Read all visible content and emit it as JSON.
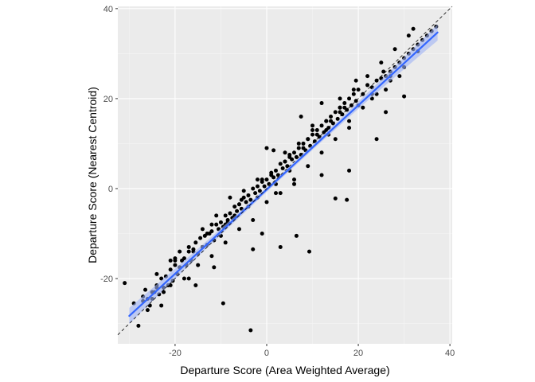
{
  "chart_data": {
    "type": "scatter",
    "title": "",
    "xlabel": "Departure Score (Area Weighted Average)",
    "ylabel": "Departure Score (Nearest Centroid)",
    "xlim": [
      -32.5,
      40.5
    ],
    "ylim": [
      -34.5,
      40.5
    ],
    "x_ticks": [
      -20,
      0,
      20,
      40
    ],
    "y_ticks": [
      -20,
      0,
      20,
      40
    ],
    "x_tick_labels": [
      "-20",
      "0",
      "20",
      "40"
    ],
    "y_tick_labels": [
      "-20",
      "0",
      "20",
      "40"
    ],
    "grid": true,
    "legend": "none",
    "colors": {
      "panel": "#ebebeb",
      "grid_major": "#ffffff",
      "grid_minor": "#f5f5f5",
      "points": "#000000",
      "fit_line": "#3366ff",
      "fit_band": "#9fb3f5",
      "reference_line": "#000000"
    },
    "reference_line": {
      "type": "identity",
      "slope": 1,
      "intercept": 0,
      "style": "dashed"
    },
    "fit_line": {
      "method": "linear",
      "x": [
        -30,
        37.3
      ],
      "y": [
        -28.3,
        34.7
      ]
    },
    "points": {
      "x": [
        -31,
        -29,
        -27,
        -26.5,
        -25.5,
        -25,
        -24.5,
        -24,
        -23.5,
        -23,
        -22.5,
        -22,
        -21.5,
        -21,
        -20.5,
        -20,
        -19.5,
        -19,
        -18.5,
        -18,
        -17.5,
        -17,
        -16.5,
        -16,
        -15.5,
        -15,
        -14.5,
        -14,
        -13.5,
        -13,
        -12.5,
        -12,
        -11.5,
        -11,
        -10.5,
        -10,
        -9.5,
        -9,
        -8.5,
        -8,
        -7.5,
        -7,
        -6.5,
        -6,
        -5.5,
        -5,
        -4.5,
        -4,
        -3.5,
        -3,
        -2.5,
        -2,
        -1.5,
        -1,
        -0.5,
        0,
        0.5,
        1,
        1.5,
        2,
        2.5,
        3,
        3.5,
        4,
        4.5,
        5,
        5.5,
        6,
        6.5,
        7,
        7.5,
        8,
        8.5,
        9,
        9.5,
        10,
        10.5,
        11,
        11.5,
        12,
        12.5,
        13,
        13.5,
        14,
        14.5,
        15,
        15.5,
        16,
        16.5,
        17,
        17.5,
        18,
        18.5,
        19,
        19.5,
        20,
        21,
        22,
        23,
        24,
        25,
        26,
        27,
        28,
        29,
        30,
        31,
        32,
        33,
        34,
        35,
        36,
        37,
        -26,
        -23,
        -20,
        -17,
        -14,
        -11,
        -8,
        -5,
        -2,
        1,
        4,
        7,
        10,
        13,
        16,
        19,
        22,
        25,
        28,
        31,
        -24,
        -21,
        -18,
        -15,
        -12,
        -9,
        -6,
        -3,
        0,
        3,
        6,
        9,
        12,
        15,
        18,
        21,
        24,
        27,
        30,
        -25,
        -16,
        -10,
        -4,
        -2,
        2,
        5,
        8,
        11,
        14,
        17,
        23,
        26,
        29,
        -19,
        -13,
        -7,
        -1,
        4,
        10,
        16,
        -9.5,
        -3.5,
        17.5,
        9.3,
        15,
        -20,
        -12,
        -6,
        -1,
        3,
        6.5,
        12,
        18,
        24,
        30,
        -28,
        -15.5,
        -11.5,
        -5.5,
        1.5,
        7.5,
        13.5,
        19.5,
        25.5,
        32,
        -22.5,
        -8.5,
        0,
        6,
        12,
        18,
        26,
        -3,
        -17,
        -26,
        -27,
        -24,
        -21,
        -19,
        -14,
        -9,
        -7,
        -2,
        2,
        5,
        9,
        13,
        16,
        20,
        23,
        27,
        33,
        36
      ],
      "y": [
        -21,
        -25.5,
        -24,
        -22.5,
        -26,
        -24.5,
        -23,
        -21.5,
        -23.5,
        -20,
        -22,
        -19.5,
        -21.5,
        -18,
        -20.5,
        -17,
        -19,
        -17.5,
        -16,
        -15.5,
        -17,
        -14,
        -16,
        -13.5,
        -12,
        -14.5,
        -11,
        -13,
        -10.5,
        -12.5,
        -10,
        -9.5,
        -11.5,
        -8,
        -9,
        -7.5,
        -8.5,
        -6,
        -7,
        -5.5,
        -6.5,
        -4,
        -5,
        -3.5,
        -4.5,
        -2,
        -3,
        -1.5,
        -2.5,
        0,
        -1,
        0.5,
        -0.5,
        1.5,
        0.5,
        2,
        1,
        3.5,
        2.5,
        4,
        3,
        5.5,
        4.5,
        6,
        5,
        7,
        6.5,
        8,
        7,
        9,
        7.5,
        10,
        8.5,
        11,
        9.5,
        12,
        10.5,
        13,
        11.5,
        14,
        12.5,
        15,
        13.5,
        16,
        14.5,
        17,
        15.5,
        18,
        16.5,
        19,
        17.5,
        20,
        18.5,
        21,
        19.5,
        22,
        21,
        23,
        22.5,
        24,
        24.5,
        25,
        26,
        27,
        28,
        29,
        30,
        31,
        32,
        33,
        34,
        35,
        36,
        -27,
        -26,
        -16,
        -13,
        -9,
        -6,
        -2,
        -0.5,
        2,
        3,
        6,
        10,
        13,
        15,
        18,
        22,
        25,
        28,
        31,
        34,
        -19,
        -21.5,
        -20,
        -17,
        -15,
        -12,
        -9,
        -7,
        -3,
        -1,
        2,
        5,
        8,
        11,
        15,
        18,
        21,
        24,
        27,
        -23,
        -14,
        -10.5,
        -4,
        -2,
        1,
        4,
        9,
        12,
        15,
        18,
        20,
        22,
        25,
        -14,
        -10,
        -6,
        2,
        8,
        14,
        20,
        -25.5,
        -31.5,
        -2.5,
        -14,
        -2.2,
        -15.5,
        -8,
        -3.5,
        -10,
        -13,
        -10.5,
        3,
        4,
        11,
        20.5,
        -30.5,
        -21.5,
        -17.5,
        -2.5,
        8.5,
        16,
        12,
        24,
        26,
        35.5,
        -23,
        -7.5,
        9,
        1,
        19,
        13.5,
        17,
        -13.5,
        -20,
        -24.5,
        -25,
        -22,
        -16,
        -17.5,
        -13,
        -8,
        -6.5,
        -2,
        -1,
        7.5,
        11,
        13,
        17,
        18.5,
        21,
        25,
        30.5,
        35
      ]
    }
  }
}
